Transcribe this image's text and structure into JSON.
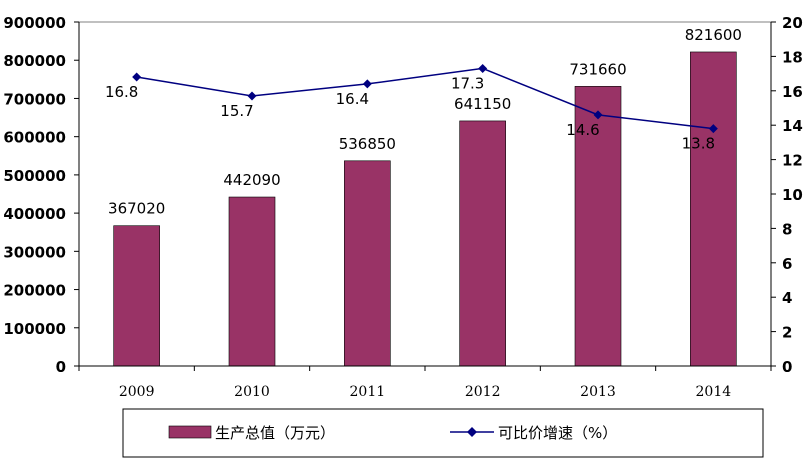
{
  "chart_data": {
    "type": "bar",
    "categories": [
      "2009",
      "2010",
      "2011",
      "2012",
      "2013",
      "2014"
    ],
    "series": [
      {
        "name": "生产总值（万元）",
        "type": "bar",
        "axis": "left",
        "values": [
          367020,
          442090,
          536850,
          641150,
          731660,
          821600
        ],
        "labels": [
          "367020",
          "442090",
          "536850",
          "641150",
          "731660",
          "821600"
        ],
        "color": "#993366"
      },
      {
        "name": "可比价增速（%）",
        "type": "line",
        "axis": "right",
        "values": [
          16.8,
          15.7,
          16.4,
          17.3,
          14.6,
          13.8
        ],
        "labels": [
          "16.8",
          "15.7",
          "16.4",
          "17.3",
          "14.6",
          "13.8"
        ],
        "color": "#000080"
      }
    ],
    "y_left": {
      "min": 0,
      "max": 900000,
      "ticks": [
        "0",
        "100000",
        "200000",
        "300000",
        "400000",
        "500000",
        "600000",
        "700000",
        "800000",
        "900000"
      ]
    },
    "y_right": {
      "min": 0,
      "max": 20,
      "ticks": [
        "0",
        "2",
        "4",
        "6",
        "8",
        "10",
        "12",
        "14",
        "16",
        "18",
        "20"
      ]
    },
    "grid": false,
    "legend_position": "bottom"
  }
}
